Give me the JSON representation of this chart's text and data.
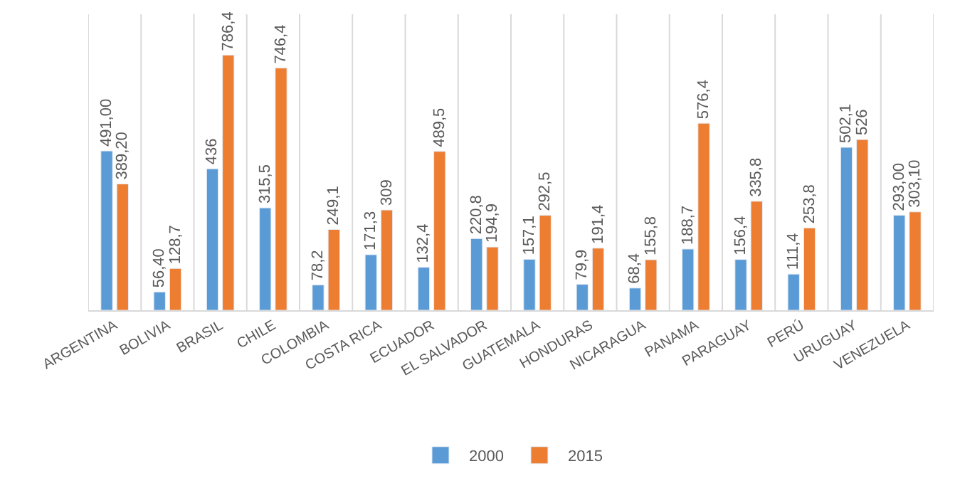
{
  "chart_data": {
    "type": "bar",
    "categories": [
      "ARGENTINA",
      "BOLIVIA",
      "BRASIL",
      "CHILE",
      "COLOMBIA",
      "COSTA RICA",
      "ECUADOR",
      "EL SALVADOR",
      "GUATEMALA",
      "HONDURAS",
      "NICARAGUA",
      "PANAMA",
      "PARAGUAY",
      "PERÚ",
      "URUGUAY",
      "VENEZUELA"
    ],
    "series": [
      {
        "name": "2000",
        "color": "#5b9bd5",
        "values": [
          491.0,
          56.4,
          436,
          315.5,
          78.2,
          171.3,
          132.4,
          220.8,
          157.1,
          79.9,
          68.4,
          188.7,
          156.4,
          111.4,
          502.1,
          293.0
        ],
        "value_labels": [
          "491,00",
          "56,40",
          "436",
          "315,5",
          "78,2",
          "171,3",
          "132,4",
          "220,8",
          "157,1",
          "79,9",
          "68,4",
          "188,7",
          "156,4",
          "111,4",
          "502,1",
          "293,00"
        ]
      },
      {
        "name": "2015",
        "color": "#ed7d31",
        "values": [
          389.2,
          128.7,
          786.4,
          746.4,
          249.1,
          309,
          489.5,
          194.9,
          292.5,
          191.4,
          155.8,
          576.4,
          335.8,
          253.8,
          526,
          303.1
        ],
        "value_labels": [
          "389,20",
          "128,7",
          "786,4",
          "746,4",
          "249,1",
          "309",
          "489,5",
          "194,9",
          "292,5",
          "191,4",
          "155,8",
          "576,4",
          "335,8",
          "253,8",
          "526",
          "303,10"
        ]
      }
    ],
    "grid": "x",
    "legend": "bottom"
  }
}
